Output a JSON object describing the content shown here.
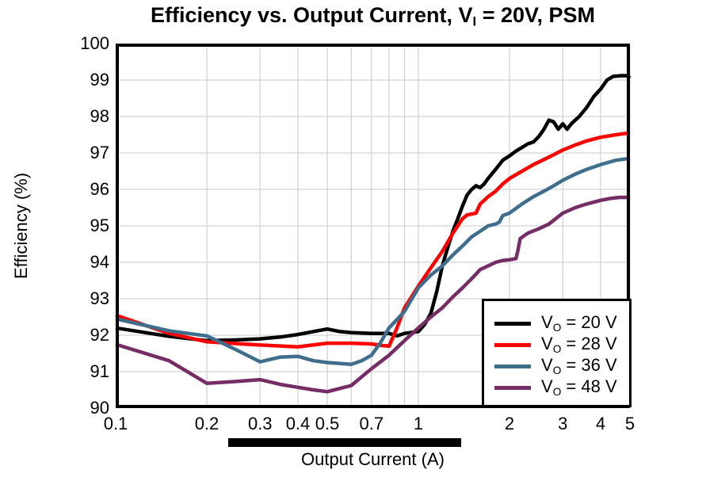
{
  "chart_data": {
    "type": "line",
    "title_parts": {
      "pre": "Efficiency vs. Output Current, V",
      "sub": "I",
      "post": " = 20V, PSM"
    },
    "xlabel": "Output Current (A)",
    "ylabel": "Efficiency (%)",
    "xscale": "log",
    "xlim": [
      0.1,
      5
    ],
    "ylim": [
      90,
      100
    ],
    "grid": true,
    "gridline_color": "#d3d3d3",
    "frame_color": "#000000",
    "x_gridlines": [
      0.2,
      0.3,
      0.4,
      0.5,
      0.6,
      0.7,
      0.8,
      0.9,
      1,
      2,
      3,
      4,
      5
    ],
    "y_gridlines": [
      91,
      92,
      93,
      94,
      95,
      96,
      97,
      98,
      99
    ],
    "xticks": [
      {
        "v": 0.1,
        "label": "0.1"
      },
      {
        "v": 0.2,
        "label": "0.2"
      },
      {
        "v": 0.3,
        "label": "0.3"
      },
      {
        "v": 0.4,
        "label": "0.4"
      },
      {
        "v": 0.5,
        "label": "0.5"
      },
      {
        "v": 0.7,
        "label": "0.7"
      },
      {
        "v": 1,
        "label": "1"
      },
      {
        "v": 2,
        "label": "2"
      },
      {
        "v": 3,
        "label": "3"
      },
      {
        "v": 4,
        "label": "4"
      },
      {
        "v": 5,
        "label": "5"
      }
    ],
    "yticks": [
      {
        "v": 90,
        "label": "90"
      },
      {
        "v": 91,
        "label": "91"
      },
      {
        "v": 92,
        "label": "92"
      },
      {
        "v": 93,
        "label": "93"
      },
      {
        "v": 94,
        "label": "94"
      },
      {
        "v": 95,
        "label": "95"
      },
      {
        "v": 96,
        "label": "96"
      },
      {
        "v": 97,
        "label": "97"
      },
      {
        "v": 98,
        "label": "98"
      },
      {
        "v": 99,
        "label": "99"
      },
      {
        "v": 100,
        "label": "100"
      }
    ],
    "legend_position": "bottom-right",
    "series": [
      {
        "name_pre": "V",
        "name_sub": "O",
        "name_post": " = 20 V",
        "color": "#000000",
        "points": [
          [
            0.1,
            92.2
          ],
          [
            0.13,
            92.05
          ],
          [
            0.15,
            91.97
          ],
          [
            0.2,
            91.85
          ],
          [
            0.25,
            91.87
          ],
          [
            0.3,
            91.9
          ],
          [
            0.35,
            91.95
          ],
          [
            0.4,
            92.02
          ],
          [
            0.45,
            92.1
          ],
          [
            0.5,
            92.17
          ],
          [
            0.55,
            92.1
          ],
          [
            0.6,
            92.07
          ],
          [
            0.7,
            92.05
          ],
          [
            0.8,
            92.05
          ],
          [
            0.85,
            91.98
          ],
          [
            0.9,
            92.05
          ],
          [
            1.0,
            92.1
          ],
          [
            1.05,
            92.3
          ],
          [
            1.1,
            92.6
          ],
          [
            1.15,
            93.2
          ],
          [
            1.2,
            93.9
          ],
          [
            1.25,
            94.4
          ],
          [
            1.3,
            94.85
          ],
          [
            1.35,
            95.2
          ],
          [
            1.4,
            95.55
          ],
          [
            1.45,
            95.85
          ],
          [
            1.5,
            96.0
          ],
          [
            1.55,
            96.1
          ],
          [
            1.6,
            96.05
          ],
          [
            1.65,
            96.15
          ],
          [
            1.7,
            96.3
          ],
          [
            1.8,
            96.55
          ],
          [
            1.9,
            96.8
          ],
          [
            2.0,
            96.92
          ],
          [
            2.1,
            97.05
          ],
          [
            2.2,
            97.15
          ],
          [
            2.3,
            97.25
          ],
          [
            2.4,
            97.3
          ],
          [
            2.5,
            97.45
          ],
          [
            2.6,
            97.65
          ],
          [
            2.7,
            97.9
          ],
          [
            2.8,
            97.85
          ],
          [
            2.9,
            97.65
          ],
          [
            3.0,
            97.8
          ],
          [
            3.1,
            97.65
          ],
          [
            3.2,
            97.8
          ],
          [
            3.4,
            98.0
          ],
          [
            3.6,
            98.25
          ],
          [
            3.8,
            98.55
          ],
          [
            4.0,
            98.75
          ],
          [
            4.2,
            99.0
          ],
          [
            4.4,
            99.1
          ],
          [
            4.7,
            99.12
          ],
          [
            4.9,
            99.12
          ],
          [
            5.0,
            99.05
          ]
        ]
      },
      {
        "name_pre": "V",
        "name_sub": "O",
        "name_post": " = 28 V",
        "color": "#ff0000",
        "points": [
          [
            0.1,
            92.55
          ],
          [
            0.15,
            92.05
          ],
          [
            0.2,
            91.82
          ],
          [
            0.25,
            91.77
          ],
          [
            0.3,
            91.73
          ],
          [
            0.4,
            91.68
          ],
          [
            0.5,
            91.78
          ],
          [
            0.6,
            91.78
          ],
          [
            0.7,
            91.76
          ],
          [
            0.75,
            91.72
          ],
          [
            0.8,
            91.7
          ],
          [
            0.85,
            92.2
          ],
          [
            0.9,
            92.75
          ],
          [
            1.0,
            93.35
          ],
          [
            1.1,
            93.85
          ],
          [
            1.2,
            94.3
          ],
          [
            1.3,
            94.8
          ],
          [
            1.4,
            95.2
          ],
          [
            1.45,
            95.3
          ],
          [
            1.55,
            95.35
          ],
          [
            1.6,
            95.6
          ],
          [
            1.7,
            95.8
          ],
          [
            1.8,
            95.95
          ],
          [
            1.9,
            96.15
          ],
          [
            2.0,
            96.3
          ],
          [
            2.2,
            96.5
          ],
          [
            2.4,
            96.68
          ],
          [
            2.6,
            96.82
          ],
          [
            2.8,
            96.95
          ],
          [
            3.0,
            97.08
          ],
          [
            3.3,
            97.22
          ],
          [
            3.6,
            97.33
          ],
          [
            4.0,
            97.43
          ],
          [
            4.5,
            97.5
          ],
          [
            5.0,
            97.55
          ]
        ]
      },
      {
        "name_pre": "V",
        "name_sub": "O",
        "name_post": " = 36 V",
        "color": "#3f6e8d",
        "points": [
          [
            0.1,
            92.45
          ],
          [
            0.15,
            92.12
          ],
          [
            0.2,
            91.98
          ],
          [
            0.25,
            91.6
          ],
          [
            0.3,
            91.27
          ],
          [
            0.35,
            91.4
          ],
          [
            0.4,
            91.42
          ],
          [
            0.45,
            91.3
          ],
          [
            0.5,
            91.25
          ],
          [
            0.6,
            91.2
          ],
          [
            0.65,
            91.3
          ],
          [
            0.7,
            91.45
          ],
          [
            0.75,
            91.8
          ],
          [
            0.8,
            92.2
          ],
          [
            0.9,
            92.65
          ],
          [
            1.0,
            93.3
          ],
          [
            1.1,
            93.65
          ],
          [
            1.2,
            93.9
          ],
          [
            1.3,
            94.2
          ],
          [
            1.4,
            94.45
          ],
          [
            1.5,
            94.7
          ],
          [
            1.6,
            94.85
          ],
          [
            1.7,
            95.0
          ],
          [
            1.8,
            95.05
          ],
          [
            1.85,
            95.1
          ],
          [
            1.9,
            95.28
          ],
          [
            2.0,
            95.35
          ],
          [
            2.2,
            95.6
          ],
          [
            2.4,
            95.8
          ],
          [
            2.6,
            95.95
          ],
          [
            2.8,
            96.1
          ],
          [
            3.0,
            96.25
          ],
          [
            3.3,
            96.42
          ],
          [
            3.6,
            96.55
          ],
          [
            4.0,
            96.68
          ],
          [
            4.5,
            96.8
          ],
          [
            5.0,
            96.85
          ]
        ]
      },
      {
        "name_pre": "V",
        "name_sub": "O",
        "name_post": " = 48 V",
        "color": "#762c65",
        "points": [
          [
            0.1,
            91.75
          ],
          [
            0.15,
            91.3
          ],
          [
            0.2,
            90.68
          ],
          [
            0.25,
            90.73
          ],
          [
            0.3,
            90.78
          ],
          [
            0.35,
            90.65
          ],
          [
            0.4,
            90.57
          ],
          [
            0.45,
            90.5
          ],
          [
            0.5,
            90.45
          ],
          [
            0.6,
            90.62
          ],
          [
            0.7,
            91.08
          ],
          [
            0.8,
            91.45
          ],
          [
            0.9,
            91.85
          ],
          [
            1.0,
            92.2
          ],
          [
            1.1,
            92.5
          ],
          [
            1.2,
            92.75
          ],
          [
            1.3,
            93.05
          ],
          [
            1.4,
            93.3
          ],
          [
            1.5,
            93.55
          ],
          [
            1.6,
            93.8
          ],
          [
            1.7,
            93.9
          ],
          [
            1.8,
            94.0
          ],
          [
            1.9,
            94.05
          ],
          [
            2.0,
            94.07
          ],
          [
            2.1,
            94.1
          ],
          [
            2.13,
            94.3
          ],
          [
            2.17,
            94.65
          ],
          [
            2.3,
            94.8
          ],
          [
            2.5,
            94.92
          ],
          [
            2.7,
            95.05
          ],
          [
            3.0,
            95.35
          ],
          [
            3.3,
            95.5
          ],
          [
            3.6,
            95.6
          ],
          [
            4.0,
            95.7
          ],
          [
            4.3,
            95.75
          ],
          [
            4.6,
            95.78
          ],
          [
            5.0,
            95.78
          ]
        ]
      }
    ]
  }
}
